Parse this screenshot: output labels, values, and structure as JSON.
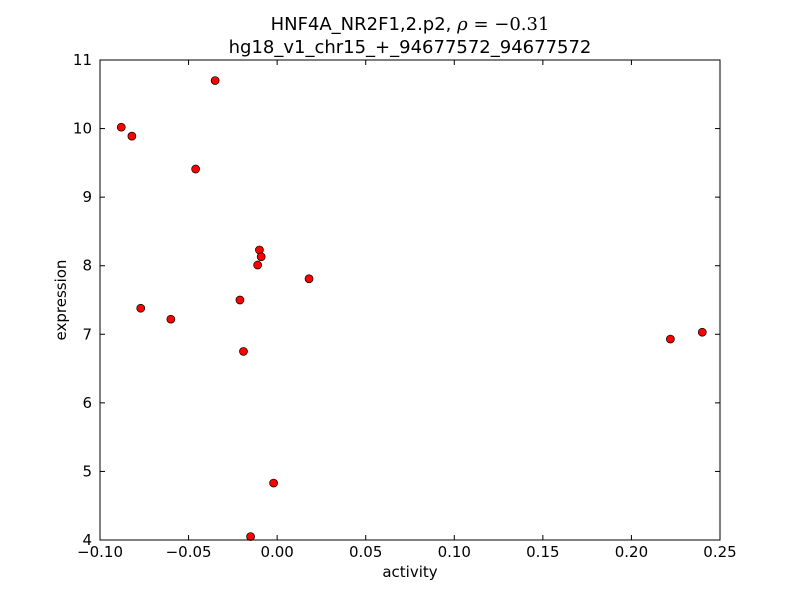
{
  "chart_data": {
    "type": "scatter",
    "title_line1_prefix": "HNF4A_NR2F1,2.p2, ",
    "title_rho": "ρ",
    "title_eq": " = ",
    "title_value": "−0.31",
    "title_line2": "hg18_v1_chr15_+_94677572_94677572",
    "xlabel": "activity",
    "ylabel": "expression",
    "xlim": [
      -0.1,
      0.25
    ],
    "ylim": [
      4,
      11
    ],
    "xticks": [
      -0.1,
      -0.05,
      0.0,
      0.05,
      0.1,
      0.15,
      0.2,
      0.25
    ],
    "xtick_labels": [
      "−0.10",
      "−0.05",
      "0.00",
      "0.05",
      "0.10",
      "0.15",
      "0.20",
      "0.25"
    ],
    "yticks": [
      4,
      5,
      6,
      7,
      8,
      9,
      10,
      11
    ],
    "ytick_labels": [
      "4",
      "5",
      "6",
      "7",
      "8",
      "9",
      "10",
      "11"
    ],
    "grid": false,
    "marker_color": "#ff0000",
    "marker_edge_color": "#000000",
    "points": [
      {
        "x": -0.088,
        "y": 10.02
      },
      {
        "x": -0.082,
        "y": 9.89
      },
      {
        "x": -0.035,
        "y": 10.7
      },
      {
        "x": -0.046,
        "y": 9.41
      },
      {
        "x": -0.077,
        "y": 7.38
      },
      {
        "x": -0.06,
        "y": 7.22
      },
      {
        "x": -0.021,
        "y": 7.5
      },
      {
        "x": -0.019,
        "y": 6.75
      },
      {
        "x": -0.01,
        "y": 8.23
      },
      {
        "x": -0.009,
        "y": 8.13
      },
      {
        "x": -0.011,
        "y": 8.01
      },
      {
        "x": 0.018,
        "y": 7.81
      },
      {
        "x": 0.222,
        "y": 6.93
      },
      {
        "x": 0.24,
        "y": 7.03
      },
      {
        "x": -0.002,
        "y": 4.83
      },
      {
        "x": -0.015,
        "y": 4.05
      }
    ]
  }
}
